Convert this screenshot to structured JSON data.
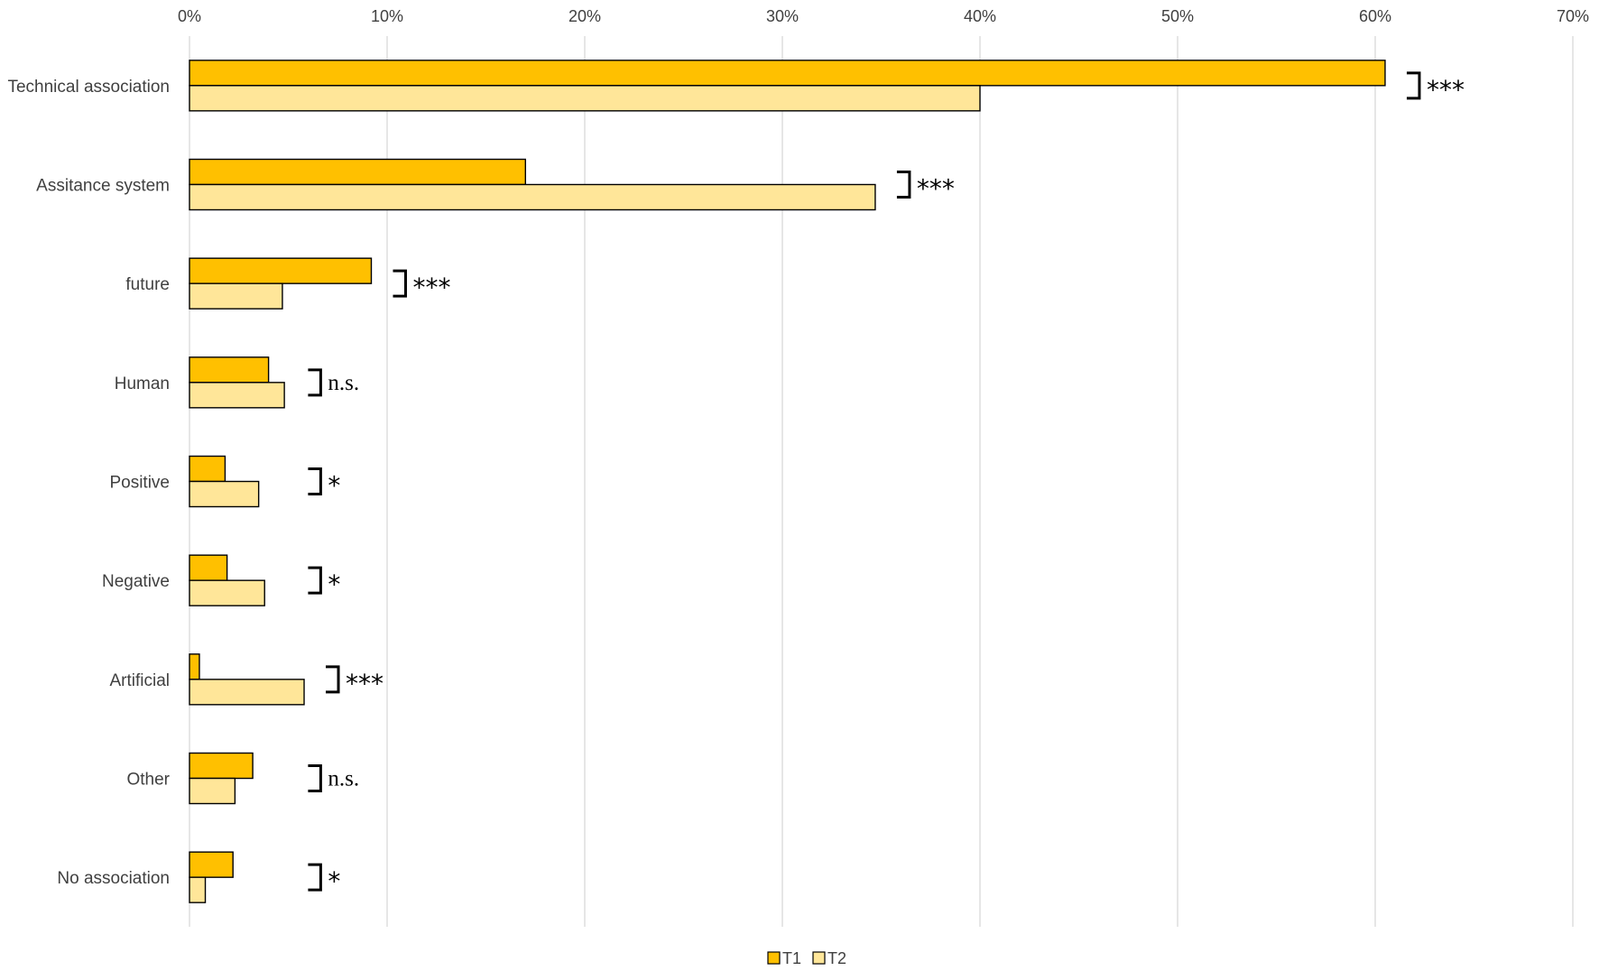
{
  "chart_data": {
    "type": "bar",
    "orientation": "horizontal",
    "categories": [
      "Technical association",
      "Assitance system",
      "future",
      "Human",
      "Positive",
      "Negative",
      "Artificial",
      "Other",
      "No association"
    ],
    "series": [
      {
        "name": "T1",
        "color": "#FFC000",
        "values": [
          60.5,
          17.0,
          9.2,
          4.0,
          1.8,
          1.9,
          0.5,
          3.2,
          2.2
        ]
      },
      {
        "name": "T2",
        "color": "#FFE699",
        "values": [
          40.0,
          34.7,
          4.7,
          4.8,
          3.5,
          3.8,
          5.8,
          2.3,
          0.8
        ]
      }
    ],
    "significance": [
      "***",
      "***",
      "***",
      "n.s.",
      "*",
      "*",
      "***",
      "n.s.",
      "*"
    ],
    "xlim": [
      0,
      70
    ],
    "x_ticks": [
      "0%",
      "10%",
      "20%",
      "30%",
      "40%",
      "50%",
      "60%",
      "70%"
    ],
    "grid": true,
    "legend_position": "bottom",
    "title": "",
    "xlabel": "",
    "ylabel": ""
  }
}
